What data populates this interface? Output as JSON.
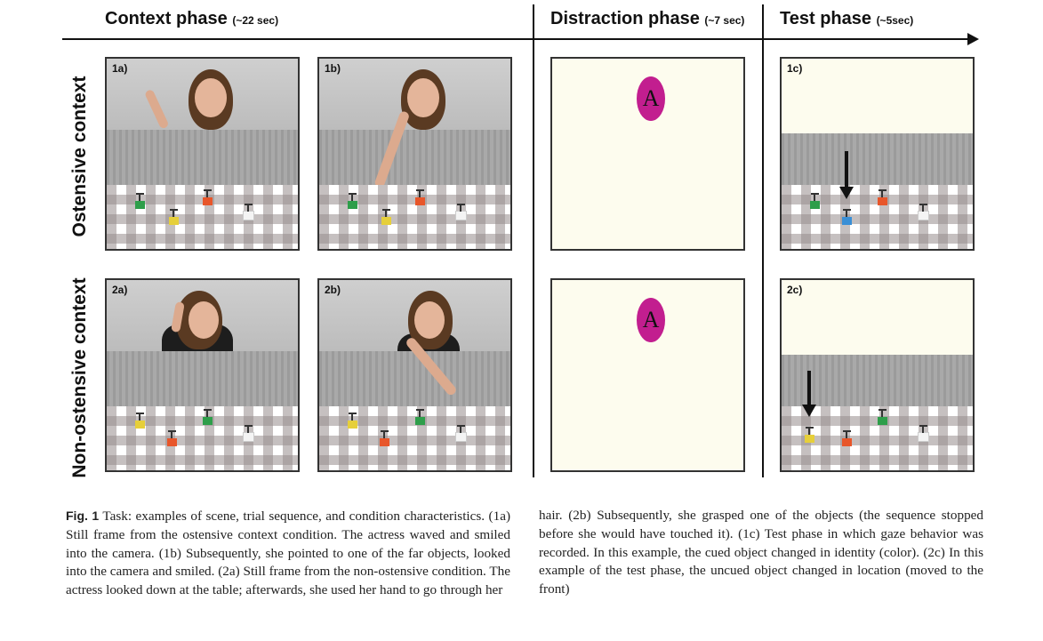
{
  "phases": [
    {
      "name": "Context phase",
      "duration": "(~22 sec)"
    },
    {
      "name": "Distraction phase",
      "duration": "(~7 sec)"
    },
    {
      "name": "Test phase",
      "duration": "(~5sec)"
    }
  ],
  "rows": [
    "Ostensive context",
    "Non-ostensive context"
  ],
  "panel_labels": {
    "p1a": "1a)",
    "p1b": "1b)",
    "p1c": "1c)",
    "p2a": "2a)",
    "p2b": "2b)",
    "p2c": "2c)"
  },
  "distraction_letter": "A",
  "object_colors": {
    "green": "#2e9e4a",
    "red": "#e8562a",
    "yellow": "#e6cf3a",
    "white": "#f4f4f4",
    "blue": "#3a8fd6"
  },
  "caption": {
    "fig_label": "Fig. 1",
    "left": "Task: examples of scene, trial sequence, and condition characteristics. (1a) Still frame from the ostensive context condition. The actress waved and smiled into the camera. (1b) Subsequently, she pointed to one of the far objects, looked into the camera and smiled. (2a) Still frame from the non-ostensive condition. The actress looked down at the table; afterwards, she used her hand to go through her",
    "right": "hair. (2b) Subsequently, she grasped one of the objects (the sequence stopped before she would have touched it). (1c) Test phase in which gaze behavior was recorded. In this example, the cued object changed in identity (color). (2c) In this example of the test phase, the uncued object changed in location (moved to the front)"
  }
}
